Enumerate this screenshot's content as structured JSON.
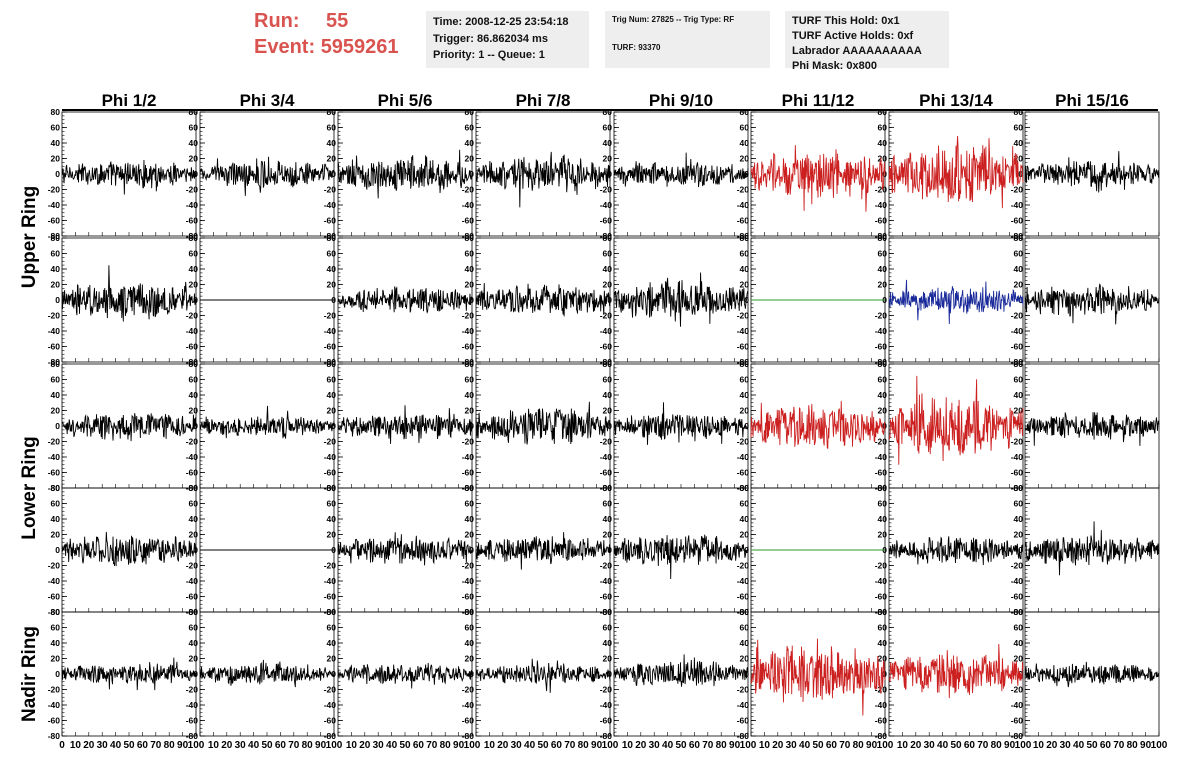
{
  "header": {
    "run_label": "Run:",
    "run_value": "55",
    "event_label": "Event:",
    "event_value": "5959261",
    "time": "Time: 2008-12-25 23:54:18",
    "trigger": "Trigger: 86.862034 ms",
    "priority": "Priority: 1 -- Queue: 1",
    "trig_num": "Trig Num: 27825 -- Trig Type: RF",
    "turf": "TURF: 93370",
    "turf_this_hold": "TURF This Hold: 0x1",
    "turf_active_holds": "TURF Active Holds: 0xf",
    "labrador": "Labrador AAAAAAAAAA",
    "phi_mask": "Phi Mask: 0x800"
  },
  "colors": {
    "header_red": "#d9534f",
    "trace_default": "#000000",
    "trace_red": "#cc2020",
    "trace_blue": "#1a2a9a",
    "trace_green": "#2a9a2a",
    "info_box_bg": "#eeeeee"
  },
  "chart_data": {
    "type": "line",
    "columns": [
      "Phi 1/2",
      "Phi 3/4",
      "Phi 5/6",
      "Phi 7/8",
      "Phi 9/10",
      "Phi 11/12",
      "Phi 13/14",
      "Phi 15/16"
    ],
    "ring_labels": [
      "Upper Ring",
      "Lower Ring",
      "Nadir Ring"
    ],
    "ring_rows": [
      [
        0,
        1
      ],
      [
        2,
        3
      ],
      [
        4
      ]
    ],
    "xlim": [
      0,
      100
    ],
    "ylim": [
      -80,
      80
    ],
    "x_tick_labels": [
      "0",
      "10",
      "20",
      "30",
      "40",
      "50",
      "60",
      "70",
      "80",
      "90",
      "100"
    ],
    "y_tick_labels": [
      "80",
      "60",
      "40",
      "20",
      "0",
      "-20",
      "-40",
      "-60",
      "-80"
    ],
    "y_ticks": [
      80,
      60,
      40,
      20,
      0,
      -20,
      -40,
      -60,
      -80
    ],
    "traces": [
      {
        "row": 0,
        "col": 0,
        "color": "black",
        "amplitude": 10
      },
      {
        "row": 0,
        "col": 1,
        "color": "black",
        "amplitude": 10
      },
      {
        "row": 0,
        "col": 2,
        "color": "black",
        "amplitude": 14
      },
      {
        "row": 0,
        "col": 3,
        "color": "black",
        "amplitude": 14
      },
      {
        "row": 0,
        "col": 4,
        "color": "black",
        "amplitude": 10
      },
      {
        "row": 0,
        "col": 5,
        "color": "red",
        "amplitude": 18
      },
      {
        "row": 0,
        "col": 6,
        "color": "red",
        "amplitude": 22
      },
      {
        "row": 0,
        "col": 7,
        "color": "black",
        "amplitude": 10
      },
      {
        "row": 1,
        "col": 0,
        "color": "black",
        "amplitude": 14
      },
      {
        "row": 1,
        "col": 1,
        "color": "black",
        "amplitude": 0
      },
      {
        "row": 1,
        "col": 2,
        "color": "black",
        "amplitude": 10
      },
      {
        "row": 1,
        "col": 3,
        "color": "black",
        "amplitude": 12
      },
      {
        "row": 1,
        "col": 4,
        "color": "black",
        "amplitude": 14
      },
      {
        "row": 1,
        "col": 5,
        "color": "green",
        "amplitude": 0
      },
      {
        "row": 1,
        "col": 6,
        "color": "blue",
        "amplitude": 10
      },
      {
        "row": 1,
        "col": 7,
        "color": "black",
        "amplitude": 12
      },
      {
        "row": 2,
        "col": 0,
        "color": "black",
        "amplitude": 10
      },
      {
        "row": 2,
        "col": 1,
        "color": "black",
        "amplitude": 8
      },
      {
        "row": 2,
        "col": 2,
        "color": "black",
        "amplitude": 10
      },
      {
        "row": 2,
        "col": 3,
        "color": "black",
        "amplitude": 14
      },
      {
        "row": 2,
        "col": 4,
        "color": "black",
        "amplitude": 10
      },
      {
        "row": 2,
        "col": 5,
        "color": "red",
        "amplitude": 16
      },
      {
        "row": 2,
        "col": 6,
        "color": "red",
        "amplitude": 22
      },
      {
        "row": 2,
        "col": 7,
        "color": "black",
        "amplitude": 10
      },
      {
        "row": 3,
        "col": 0,
        "color": "black",
        "amplitude": 12
      },
      {
        "row": 3,
        "col": 1,
        "color": "black",
        "amplitude": 0
      },
      {
        "row": 3,
        "col": 2,
        "color": "black",
        "amplitude": 10
      },
      {
        "row": 3,
        "col": 3,
        "color": "black",
        "amplitude": 10
      },
      {
        "row": 3,
        "col": 4,
        "color": "black",
        "amplitude": 12
      },
      {
        "row": 3,
        "col": 5,
        "color": "green",
        "amplitude": 0
      },
      {
        "row": 3,
        "col": 6,
        "color": "black",
        "amplitude": 10
      },
      {
        "row": 3,
        "col": 7,
        "color": "black",
        "amplitude": 12
      },
      {
        "row": 4,
        "col": 0,
        "color": "black",
        "amplitude": 8
      },
      {
        "row": 4,
        "col": 1,
        "color": "black",
        "amplitude": 8
      },
      {
        "row": 4,
        "col": 2,
        "color": "black",
        "amplitude": 8
      },
      {
        "row": 4,
        "col": 3,
        "color": "black",
        "amplitude": 8
      },
      {
        "row": 4,
        "col": 4,
        "color": "black",
        "amplitude": 10
      },
      {
        "row": 4,
        "col": 5,
        "color": "red",
        "amplitude": 22
      },
      {
        "row": 4,
        "col": 6,
        "color": "red",
        "amplitude": 16
      },
      {
        "row": 4,
        "col": 7,
        "color": "black",
        "amplitude": 8
      }
    ]
  }
}
